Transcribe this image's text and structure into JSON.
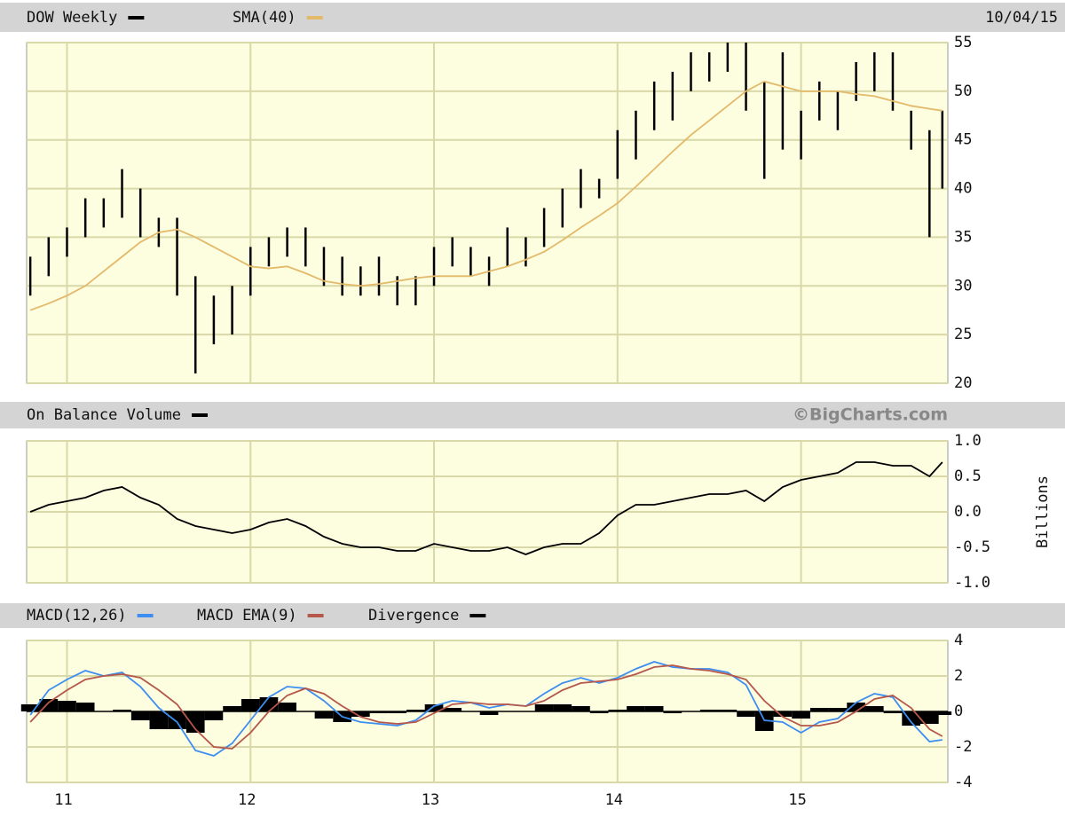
{
  "chart_data": [
    {
      "type": "hilo",
      "date": "10/04/15",
      "x": [
        10.8,
        10.9,
        11.0,
        11.1,
        11.2,
        11.3,
        11.4,
        11.5,
        11.6,
        11.7,
        11.8,
        11.9,
        12.0,
        12.1,
        12.2,
        12.3,
        12.4,
        12.5,
        12.6,
        12.7,
        12.8,
        12.9,
        13.0,
        13.1,
        13.2,
        13.3,
        13.4,
        13.5,
        13.6,
        13.7,
        13.8,
        13.9,
        14.0,
        14.1,
        14.2,
        14.3,
        14.4,
        14.5,
        14.6,
        14.7,
        14.8,
        14.9,
        15.0,
        15.1,
        15.2,
        15.3,
        15.4,
        15.5,
        15.6,
        15.7,
        15.77
      ],
      "xlim": [
        10.78,
        15.8
      ],
      "xticks": [
        11,
        12,
        13,
        14,
        15
      ],
      "ylim": [
        20,
        55
      ],
      "yticks": [
        20,
        25,
        30,
        35,
        40,
        45,
        50,
        55
      ],
      "grid": true,
      "series": [
        {
          "name": "DOW Weekly",
          "type": "hilo",
          "color": "#000000",
          "high": [
            33,
            35,
            36,
            39,
            39,
            42,
            40,
            37,
            37,
            31,
            29,
            30,
            34,
            35,
            36,
            36,
            34,
            33,
            32,
            33,
            31,
            31,
            34,
            35,
            34,
            33,
            36,
            35,
            38,
            40,
            42,
            41,
            46,
            48,
            51,
            52,
            54,
            54,
            55,
            55,
            51,
            54,
            48,
            51,
            50,
            53,
            54,
            54,
            48,
            46,
            48
          ],
          "low": [
            29,
            31,
            33,
            35,
            36,
            37,
            35,
            34,
            29,
            21,
            24,
            25,
            29,
            32,
            33,
            32,
            30,
            29,
            29,
            29,
            28,
            28,
            30,
            32,
            31,
            30,
            32,
            32,
            34,
            36,
            38,
            39,
            41,
            43,
            46,
            47,
            50,
            51,
            52,
            48,
            41,
            44,
            43,
            47,
            46,
            49,
            50,
            48,
            44,
            35,
            40
          ]
        },
        {
          "name": "SMA(40)",
          "type": "line",
          "color": "#e3b96a",
          "values": [
            27.5,
            28.2,
            29,
            30,
            31.5,
            33,
            34.5,
            35.5,
            35.8,
            35,
            34,
            33,
            32,
            31.8,
            32,
            31.3,
            30.5,
            30.2,
            30,
            30.2,
            30.5,
            30.8,
            31,
            31,
            31,
            31.5,
            32,
            32.7,
            33.5,
            34.7,
            36,
            37.2,
            38.5,
            40.2,
            42,
            43.8,
            45.5,
            47,
            48.5,
            50,
            51,
            50.5,
            50,
            50,
            50,
            49.7,
            49.5,
            49,
            48.5,
            48.2,
            48
          ]
        }
      ]
    },
    {
      "type": "line",
      "source": "©BigCharts.com",
      "ylabel": "Billions",
      "x": [
        10.8,
        10.9,
        11.0,
        11.1,
        11.2,
        11.3,
        11.4,
        11.5,
        11.6,
        11.7,
        11.8,
        11.9,
        12.0,
        12.1,
        12.2,
        12.3,
        12.4,
        12.5,
        12.6,
        12.7,
        12.8,
        12.9,
        13.0,
        13.1,
        13.2,
        13.3,
        13.4,
        13.5,
        13.6,
        13.7,
        13.8,
        13.9,
        14.0,
        14.1,
        14.2,
        14.3,
        14.4,
        14.5,
        14.6,
        14.7,
        14.8,
        14.9,
        15.0,
        15.1,
        15.2,
        15.3,
        15.4,
        15.5,
        15.6,
        15.7,
        15.77
      ],
      "xlim": [
        10.78,
        15.8
      ],
      "xticks": [
        11,
        12,
        13,
        14,
        15
      ],
      "ylim": [
        -1,
        1
      ],
      "yticks": [
        {
          "value": 1,
          "label": "1.0"
        },
        {
          "value": 0.5,
          "label": "0.5"
        },
        {
          "value": 0,
          "label": "0.0"
        },
        {
          "value": -0.5,
          "label": "-0.5"
        },
        {
          "value": -1,
          "label": "-1.0"
        }
      ],
      "grid": true,
      "series": [
        {
          "name": "On Balance Volume",
          "type": "line",
          "color": "#000000",
          "values": [
            0,
            0.1,
            0.15,
            0.2,
            0.3,
            0.35,
            0.2,
            0.1,
            -0.1,
            -0.2,
            -0.25,
            -0.3,
            -0.25,
            -0.15,
            -0.1,
            -0.2,
            -0.35,
            -0.45,
            -0.5,
            -0.5,
            -0.55,
            -0.55,
            -0.45,
            -0.5,
            -0.55,
            -0.55,
            -0.5,
            -0.6,
            -0.5,
            -0.45,
            -0.45,
            -0.3,
            -0.05,
            0.1,
            0.1,
            0.15,
            0.2,
            0.25,
            0.25,
            0.3,
            0.15,
            0.35,
            0.45,
            0.5,
            0.55,
            0.7,
            0.7,
            0.65,
            0.65,
            0.5,
            0.7
          ]
        }
      ]
    },
    {
      "type": "line",
      "x": [
        10.8,
        10.9,
        11.0,
        11.1,
        11.2,
        11.3,
        11.4,
        11.5,
        11.6,
        11.7,
        11.8,
        11.9,
        12.0,
        12.1,
        12.2,
        12.3,
        12.4,
        12.5,
        12.6,
        12.7,
        12.8,
        12.9,
        13.0,
        13.1,
        13.2,
        13.3,
        13.4,
        13.5,
        13.6,
        13.7,
        13.8,
        13.9,
        14.0,
        14.1,
        14.2,
        14.3,
        14.4,
        14.5,
        14.6,
        14.7,
        14.8,
        14.9,
        15.0,
        15.1,
        15.2,
        15.3,
        15.4,
        15.5,
        15.6,
        15.7,
        15.77
      ],
      "xlim": [
        10.78,
        15.8
      ],
      "xticks": [
        11,
        12,
        13,
        14,
        15
      ],
      "ylim": [
        -4,
        4
      ],
      "yticks": [
        4,
        2,
        0,
        -2,
        -4
      ],
      "grid": true,
      "series": [
        {
          "name": "MACD(12,26)",
          "type": "line",
          "color": "#3d8ef0",
          "values": [
            -0.2,
            1.2,
            1.8,
            2.3,
            2.0,
            2.2,
            1.4,
            0.2,
            -0.6,
            -2.2,
            -2.5,
            -1.8,
            -0.5,
            0.8,
            1.4,
            1.3,
            0.6,
            -0.3,
            -0.6,
            -0.7,
            -0.8,
            -0.5,
            0.3,
            0.6,
            0.5,
            0.2,
            0.4,
            0.3,
            1.0,
            1.6,
            1.9,
            1.6,
            1.9,
            2.4,
            2.8,
            2.5,
            2.4,
            2.4,
            2.2,
            1.5,
            -0.5,
            -0.6,
            -1.2,
            -0.6,
            -0.4,
            0.5,
            1.0,
            0.8,
            -0.6,
            -1.7,
            -1.6
          ]
        },
        {
          "name": "MACD EMA(9)",
          "type": "line",
          "color": "#b5574a",
          "values": [
            -0.6,
            0.5,
            1.2,
            1.8,
            2.0,
            2.1,
            1.9,
            1.2,
            0.4,
            -1.0,
            -2.0,
            -2.1,
            -1.2,
            0,
            0.9,
            1.3,
            1.0,
            0.3,
            -0.3,
            -0.6,
            -0.7,
            -0.6,
            -0.1,
            0.4,
            0.5,
            0.4,
            0.4,
            0.3,
            0.6,
            1.2,
            1.6,
            1.7,
            1.8,
            2.1,
            2.5,
            2.6,
            2.4,
            2.3,
            2.1,
            1.8,
            0.6,
            -0.3,
            -0.8,
            -0.8,
            -0.6,
            0,
            0.7,
            0.9,
            0.2,
            -1.0,
            -1.4
          ]
        },
        {
          "name": "Divergence",
          "type": "bar",
          "color": "#000000",
          "values": [
            0.4,
            0.7,
            0.6,
            0.5,
            0,
            0.1,
            -0.5,
            -1.0,
            -1.0,
            -1.2,
            -0.5,
            0.3,
            0.7,
            0.8,
            0.5,
            0,
            -0.4,
            -0.6,
            -0.3,
            -0.1,
            -0.1,
            0.1,
            0.4,
            0.2,
            0,
            -0.2,
            0,
            0,
            0.4,
            0.4,
            0.3,
            -0.1,
            0.1,
            0.3,
            0.3,
            -0.1,
            0,
            0.1,
            0.1,
            -0.3,
            -1.1,
            -0.3,
            -0.4,
            0.2,
            0.2,
            0.5,
            0.3,
            -0.1,
            -0.8,
            -0.7,
            -0.2
          ]
        }
      ]
    }
  ]
}
